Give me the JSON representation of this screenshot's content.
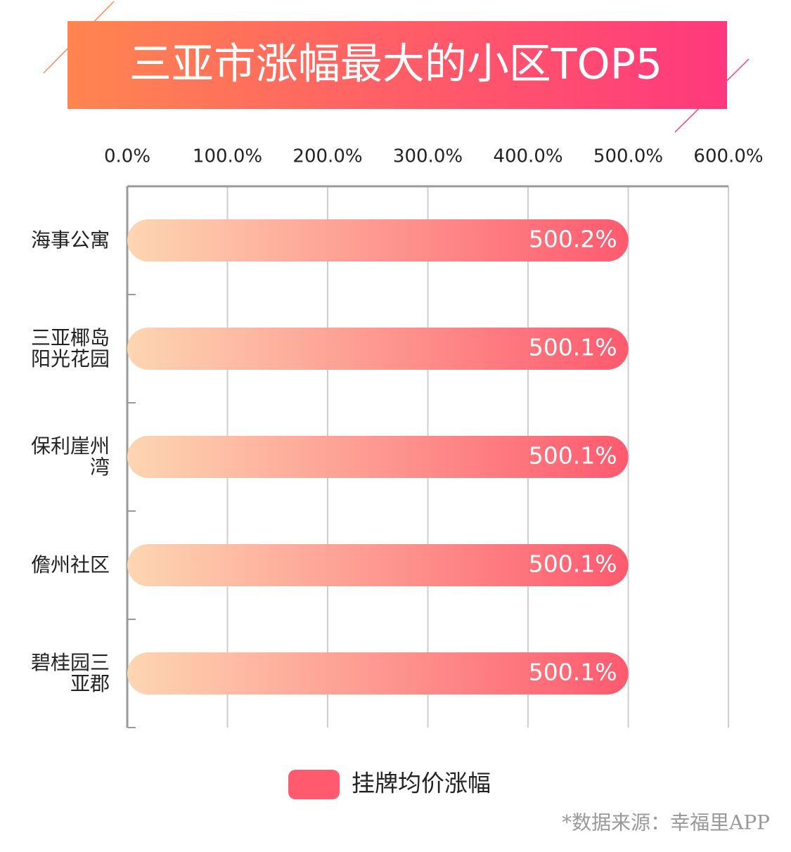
{
  "chart_data": {
    "type": "bar",
    "orientation": "horizontal",
    "title": "三亚市涨幅最大的小区TOP5",
    "categories": [
      "海事公寓",
      "三亚椰岛阳光花园",
      "保利崖州湾",
      "儋州社区",
      "碧桂园三亚郡"
    ],
    "series": [
      {
        "name": "挂牌均价涨幅",
        "color": "#ff5a6e",
        "color_start": "#fdd6b2",
        "values": [
          500.2,
          500.1,
          500.1,
          500.1,
          500.1
        ],
        "value_labels": [
          "500.2%",
          "500.1%",
          "500.1%",
          "500.1%",
          "500.1%"
        ]
      }
    ],
    "xlim": [
      0,
      600
    ],
    "xticks": [
      {
        "value": 0,
        "label": "0.0%"
      },
      {
        "value": 100,
        "label": "100.0%"
      },
      {
        "value": 200,
        "label": "200.0%"
      },
      {
        "value": 300,
        "label": "300.0%"
      },
      {
        "value": 400,
        "label": "400.0%"
      },
      {
        "value": 500,
        "label": "500.0%"
      },
      {
        "value": 600,
        "label": "600.0%"
      }
    ],
    "grid": true,
    "legend": "bottom",
    "source": "*数据来源：幸福里APP"
  }
}
